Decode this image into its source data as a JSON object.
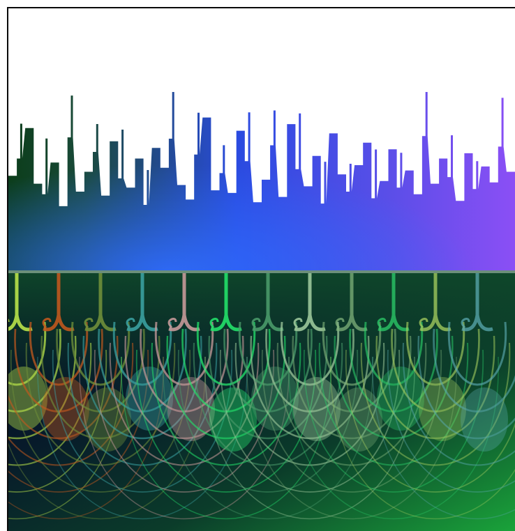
{
  "artwork": {
    "skyline_colors": {
      "left": "#0b3d1a",
      "middle": "#2a4be0",
      "right": "#8b4ff5",
      "sky": "#ffffff"
    },
    "divider_color": "#6b8f7a",
    "lower_background": {
      "dark": "#030824",
      "mid": "#0b3c2a",
      "bright": "#1aa33a"
    },
    "fern_colors": [
      "#b9e34a",
      "#c0581e",
      "#6f8f3a",
      "#3aa0a0",
      "#c79a9a",
      "#23e06a",
      "#4a9a6a",
      "#9cc79a",
      "#7fb27a",
      "#2ccf6a",
      "#a8d060",
      "#5aa9b0"
    ],
    "skyline_levels": [
      0.42,
      0.55,
      0.78,
      0.36,
      0.28,
      0.52,
      0.19,
      0.71,
      0.3,
      0.45,
      0.6,
      0.27,
      0.68,
      0.4,
      0.33,
      0.55,
      0.2,
      0.63,
      0.48,
      0.7,
      0.35,
      0.24,
      0.58,
      0.86,
      0.31,
      0.44,
      0.29,
      0.76,
      0.53,
      0.22,
      0.39,
      0.65,
      0.26,
      0.81,
      0.47,
      0.34,
      0.57,
      0.21,
      0.74,
      0.43,
      0.3,
      0.5,
      0.67,
      0.25,
      0.38,
      0.62,
      0.33,
      0.46,
      0.28,
      0.72,
      0.36,
      0.55,
      0.41,
      0.23,
      0.59,
      0.32,
      0.49,
      0.37,
      0.64,
      0.45
    ]
  }
}
